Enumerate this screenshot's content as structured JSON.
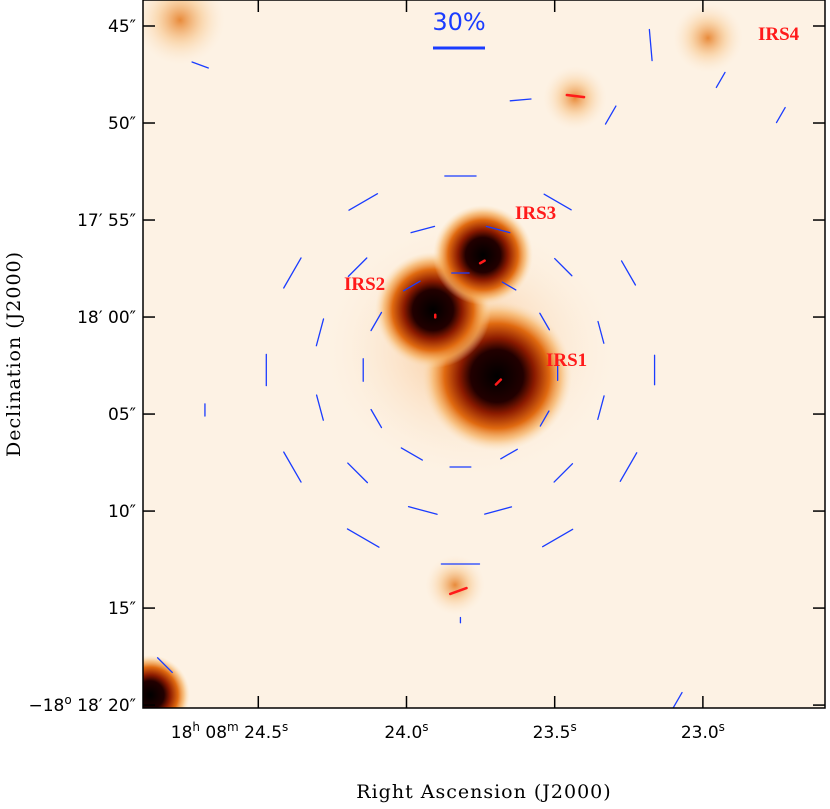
{
  "chart_data": {
    "type": "vector",
    "x_label": "Right Ascension (J2000)",
    "y_label": "Declination (J2000)",
    "xlim": [
      24.889,
      22.588
    ],
    "ylim": [
      43.66,
      80.15
    ],
    "xticks": [
      {
        "value": 24.5,
        "label": [
          "18",
          "h",
          " 08",
          "m",
          " 24.5",
          "s"
        ]
      },
      {
        "value": 24.0,
        "label": [
          "24.0",
          "s"
        ]
      },
      {
        "value": 23.5,
        "label": [
          "23.5",
          "s"
        ]
      },
      {
        "value": 23.0,
        "label": [
          "23.0",
          "s"
        ]
      }
    ],
    "yticks": [
      {
        "value": 45,
        "label": [
          "45″"
        ]
      },
      {
        "value": 50,
        "label": [
          "50″"
        ]
      },
      {
        "value": 55,
        "label": [
          "17′ 55″"
        ]
      },
      {
        "value": 60,
        "label": [
          "18′ 00″"
        ]
      },
      {
        "value": 65,
        "label": [
          "05″"
        ]
      },
      {
        "value": 70,
        "label": [
          "10″"
        ]
      },
      {
        "value": 75,
        "label": [
          "15″"
        ]
      },
      {
        "value": 80,
        "label": [
          "−18",
          "o",
          " 18′ 20″"
        ]
      }
    ],
    "scale_bar": {
      "label": "30%",
      "value": 30
    },
    "sources": [
      "IRS1",
      "IRS2",
      "IRS3",
      "IRS4"
    ],
    "series": [
      {
        "color": "#1a3cff",
        "x": [
          23.818,
          23.982,
          24.102,
          24.146,
          24.102,
          23.982,
          23.818,
          23.654,
          23.534,
          23.49,
          23.534,
          23.654,
          23.945,
          24.165,
          24.292,
          24.292,
          24.165,
          23.945,
          23.691,
          23.471,
          23.344,
          23.344,
          23.471,
          23.691,
          23.818,
          24.146,
          24.385,
          24.473,
          24.385,
          24.146,
          23.818,
          23.49,
          23.251,
          23.163,
          23.251,
          23.49,
          24.696,
          23.176,
          22.94,
          23.615,
          23.311,
          24.68,
          24.815,
          23.085,
          23.818,
          22.737
        ],
        "y": [
          57.73,
          58.4,
          60.23,
          62.73,
          65.23,
          67.06,
          67.73,
          67.06,
          65.23,
          62.73,
          60.23,
          58.4,
          55.49,
          57.43,
          60.79,
          64.67,
          68.03,
          69.97,
          69.97,
          68.03,
          64.67,
          60.79,
          57.43,
          55.49,
          52.73,
          54.07,
          57.73,
          62.73,
          67.73,
          71.39,
          72.73,
          71.39,
          67.73,
          62.73,
          57.73,
          54.07,
          47.01,
          45.98,
          47.78,
          48.81,
          49.59,
          64.79,
          77.94,
          79.74,
          75.62,
          49.59
        ],
        "values": [
          10,
          11,
          12,
          13,
          12,
          14,
          12,
          11,
          10,
          12,
          11,
          9,
          14,
          15,
          16,
          15,
          16,
          17,
          16,
          15,
          14,
          13,
          14,
          14,
          18,
          19,
          20,
          18,
          20,
          21,
          22,
          20,
          19,
          17,
          16,
          18,
          10,
          18,
          10,
          12,
          12,
          7,
          12,
          10,
          3,
          10
        ],
        "angles": [
          90,
          120,
          150,
          0,
          30,
          60,
          90,
          120,
          150,
          0,
          30,
          60,
          105,
          135,
          165,
          15,
          45,
          75,
          105,
          135,
          165,
          15,
          45,
          75,
          90,
          120,
          150,
          0,
          30,
          60,
          90,
          120,
          150,
          0,
          30,
          60,
          70,
          5,
          150,
          95,
          150,
          0,
          45,
          150,
          0,
          150
        ]
      },
      {
        "color": "#ff1a1a",
        "x": [
          23.69,
          23.43,
          23.825,
          23.744,
          23.903
        ],
        "y": [
          63.35,
          48.61,
          74.12,
          57.16,
          59.95
        ],
        "values": [
          4,
          10,
          10,
          3,
          1.5
        ],
        "angles": [
          135,
          83,
          110,
          120,
          0
        ]
      }
    ]
  }
}
